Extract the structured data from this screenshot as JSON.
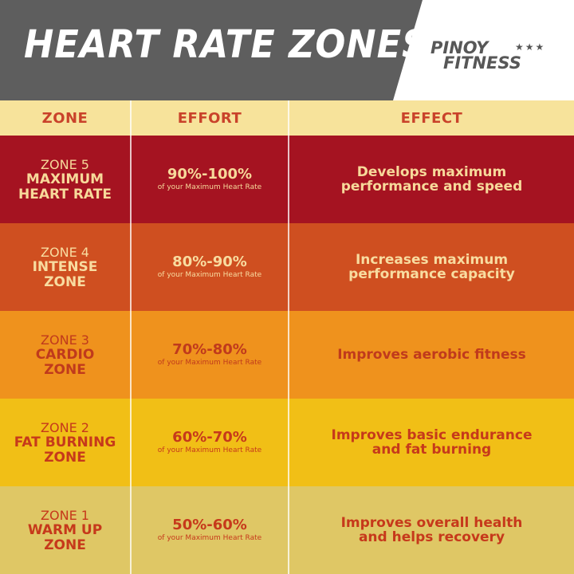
{
  "title": "HEART RATE ZONES",
  "logo": {
    "line1": "PINOY",
    "stars": "★★★",
    "line2": "FITNESS"
  },
  "columns": [
    "ZONE",
    "EFFORT",
    "EFFECT"
  ],
  "zones": [
    {
      "zone": "ZONE 5",
      "name_line1": "MAXIMUM",
      "name_line2": "HEART RATE",
      "effort": "90%-100%",
      "effort_note": "of your Maximum Heart Rate",
      "effect": "Develops maximum performance and speed"
    },
    {
      "zone": "ZONE 4",
      "name_line1": "INTENSE",
      "name_line2": "ZONE",
      "effort": "80%-90%",
      "effort_note": "of your Maximum Heart Rate",
      "effect": "Increases maximum performance capacity"
    },
    {
      "zone": "ZONE 3",
      "name_line1": "CARDIO",
      "name_line2": "ZONE",
      "effort": "70%-80%",
      "effort_note": "of your Maximum Heart Rate",
      "effect": "Improves aerobic fitness"
    },
    {
      "zone": "ZONE 2",
      "name_line1": "FAT BURNING",
      "name_line2": "ZONE",
      "effort": "60%-70%",
      "effort_note": "of your Maximum Heart Rate",
      "effect": "Improves basic endurance and fat burning"
    },
    {
      "zone": "ZONE 1",
      "name_line1": "WARM UP",
      "name_line2": "ZONE",
      "effort": "50%-60%",
      "effort_note": "of your Maximum Heart Rate",
      "effect": "Improves overall health and helps recovery"
    }
  ],
  "colors": {
    "header_band": "#5e5e5e",
    "column_header_bg": "#f7e39b",
    "zone5": "#a51321",
    "zone4": "#cf4f20",
    "zone3": "#ef921d",
    "zone2": "#f1bf16",
    "zone1": "#dfc765"
  }
}
